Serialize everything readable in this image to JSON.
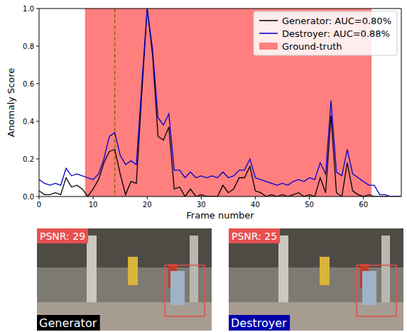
{
  "chart_data": {
    "type": "line",
    "x_label": "Frame number",
    "y_label": "Anomaly Score",
    "x": [
      0,
      1,
      2,
      3,
      4,
      5,
      6,
      7,
      8,
      9,
      10,
      11,
      12,
      13,
      14,
      15,
      16,
      17,
      18,
      19,
      20,
      21,
      22,
      23,
      24,
      25,
      26,
      27,
      28,
      29,
      30,
      31,
      32,
      33,
      34,
      35,
      36,
      37,
      38,
      39,
      40,
      41,
      42,
      43,
      44,
      45,
      46,
      47,
      48,
      49,
      50,
      51,
      52,
      53,
      54,
      55,
      56,
      57,
      58,
      59,
      60,
      61,
      62,
      63,
      64,
      65,
      66,
      67
    ],
    "series": [
      {
        "name": "Generator: AUC=0.80%",
        "color": "#000000",
        "values": [
          0.03,
          0.01,
          0.01,
          0.02,
          0.01,
          0.1,
          0.05,
          0.06,
          0.04,
          0.0,
          0.04,
          0.09,
          0.18,
          0.24,
          0.25,
          0.12,
          0.01,
          0.08,
          0.07,
          0.55,
          1.0,
          0.75,
          0.32,
          0.3,
          0.37,
          0.04,
          0.05,
          0.0,
          0.04,
          0.0,
          0.01,
          0.0,
          0.0,
          0.0,
          0.06,
          0.02,
          0.04,
          0.1,
          0.1,
          0.16,
          0.03,
          0.02,
          0.0,
          0.01,
          0.0,
          0.01,
          0.0,
          0.01,
          0.02,
          0.0,
          0.01,
          0.0,
          0.1,
          0.02,
          0.43,
          0.02,
          0.0,
          0.18,
          0.03,
          0.01,
          0.0,
          0.01,
          0.0,
          0.0,
          0.0,
          0.0,
          0.0,
          0.0
        ]
      },
      {
        "name": "Destroyer: AUC=0.88%",
        "color": "#0000cc",
        "values": [
          0.09,
          0.07,
          0.06,
          0.07,
          0.06,
          0.15,
          0.11,
          0.12,
          0.11,
          0.1,
          0.09,
          0.12,
          0.2,
          0.32,
          0.34,
          0.22,
          0.17,
          0.19,
          0.17,
          0.6,
          1.0,
          0.78,
          0.42,
          0.38,
          0.44,
          0.14,
          0.14,
          0.1,
          0.13,
          0.1,
          0.11,
          0.1,
          0.11,
          0.1,
          0.13,
          0.1,
          0.11,
          0.14,
          0.14,
          0.2,
          0.1,
          0.09,
          0.08,
          0.07,
          0.06,
          0.07,
          0.06,
          0.08,
          0.09,
          0.08,
          0.1,
          0.09,
          0.18,
          0.12,
          0.51,
          0.13,
          0.11,
          0.25,
          0.12,
          0.1,
          0.08,
          0.06,
          0.06,
          0.01,
          0.01,
          0.0,
          0.0,
          0.0
        ]
      }
    ],
    "ground_truth": {
      "name": "Ground-truth",
      "color": "#ff7f7f",
      "start": 8.5,
      "end": 61.5
    },
    "current_frame": 14,
    "xlim": [
      0,
      67
    ],
    "ylim": [
      0,
      1
    ],
    "xticks": [
      0,
      10,
      20,
      30,
      40,
      50,
      60
    ],
    "yticks": [
      {
        "value": 0,
        "label": "0.0"
      },
      0.2,
      0.4,
      0.6,
      0.8,
      {
        "value": 1,
        "label": "1.0"
      }
    ],
    "legend": "upper right"
  },
  "panels": [
    {
      "psnr": "PSNR: 29",
      "label": "Generator",
      "label_color": "#000000"
    },
    {
      "psnr": "PSNR: 25",
      "label": "Destroyer",
      "label_color": "#0000aa"
    }
  ]
}
